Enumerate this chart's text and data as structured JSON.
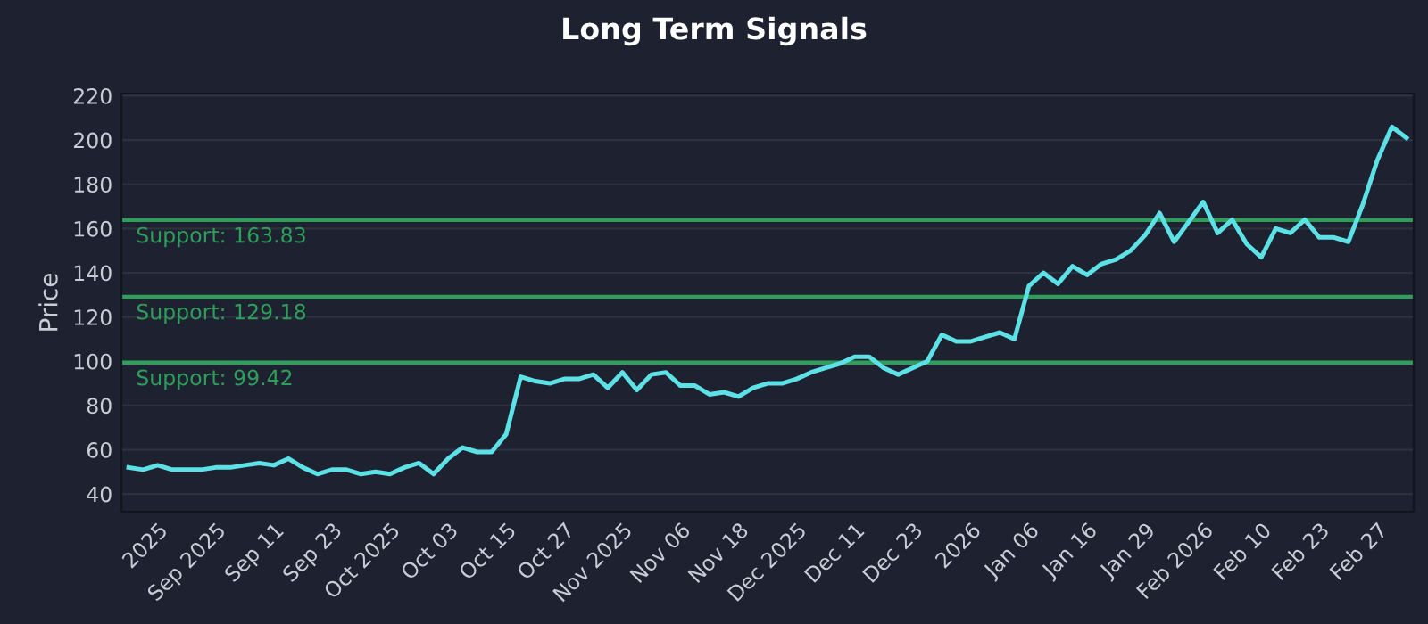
{
  "chart_data": {
    "type": "line",
    "title": "Long Term Signals",
    "ylabel": "Price",
    "categories": [
      null,
      null,
      "2025",
      null,
      null,
      null,
      "Sep 2025",
      null,
      null,
      null,
      "Sep 11",
      null,
      null,
      null,
      "Sep 23",
      null,
      null,
      null,
      "Oct 2025",
      null,
      null,
      null,
      "Oct 03",
      null,
      null,
      null,
      "Oct 15",
      null,
      null,
      null,
      "Oct 27",
      null,
      null,
      null,
      "Nov 2025",
      null,
      null,
      null,
      "Nov 06",
      null,
      null,
      null,
      "Nov 18",
      null,
      null,
      null,
      "Dec 2025",
      null,
      null,
      null,
      "Dec 11",
      null,
      null,
      null,
      "Dec 23",
      null,
      null,
      null,
      "2026",
      null,
      null,
      null,
      "Jan 06",
      null,
      null,
      null,
      "Jan 16",
      null,
      null,
      null,
      "Jan 29",
      null,
      null,
      null,
      "Feb 2026",
      null,
      null,
      null,
      "Feb 10",
      null,
      null,
      null,
      "Feb 23",
      null,
      null,
      null,
      "Feb 27",
      null,
      null
    ],
    "series": [
      {
        "color": "#5ce1e6",
        "values": [
          52,
          51,
          53,
          51,
          51,
          51,
          52,
          52,
          53,
          54,
          53,
          56,
          52,
          49,
          51,
          51,
          49,
          50,
          49,
          52,
          54,
          49,
          56,
          61,
          59,
          59,
          67,
          93,
          91,
          90,
          92,
          92,
          94,
          88,
          95,
          87,
          94,
          95,
          89,
          89,
          85,
          86,
          84,
          88,
          90,
          90,
          92,
          95,
          97,
          99,
          102,
          102,
          97,
          94,
          97,
          100,
          112,
          109,
          109,
          111,
          113,
          110,
          134,
          140,
          135,
          143,
          139,
          144,
          146,
          150,
          157,
          167,
          154,
          163,
          172,
          158,
          164,
          153,
          147,
          160,
          158,
          164,
          156,
          156,
          154,
          171,
          191,
          206,
          201
        ]
      }
    ],
    "ylim": [
      32,
      221
    ],
    "yticks": [
      40,
      60,
      80,
      100,
      120,
      140,
      160,
      180,
      200,
      220
    ],
    "grid": "y",
    "line_style": "solid",
    "ref_lines": [
      {
        "axis": "y",
        "value": 163.83,
        "label": "Support: 163.83",
        "color": "#2e9e5b"
      },
      {
        "axis": "y",
        "value": 129.18,
        "label": "Support: 129.18",
        "color": "#2e9e5b"
      },
      {
        "axis": "y",
        "value": 99.42,
        "label": "Support: 99.42",
        "color": "#2e9e5b"
      }
    ]
  }
}
